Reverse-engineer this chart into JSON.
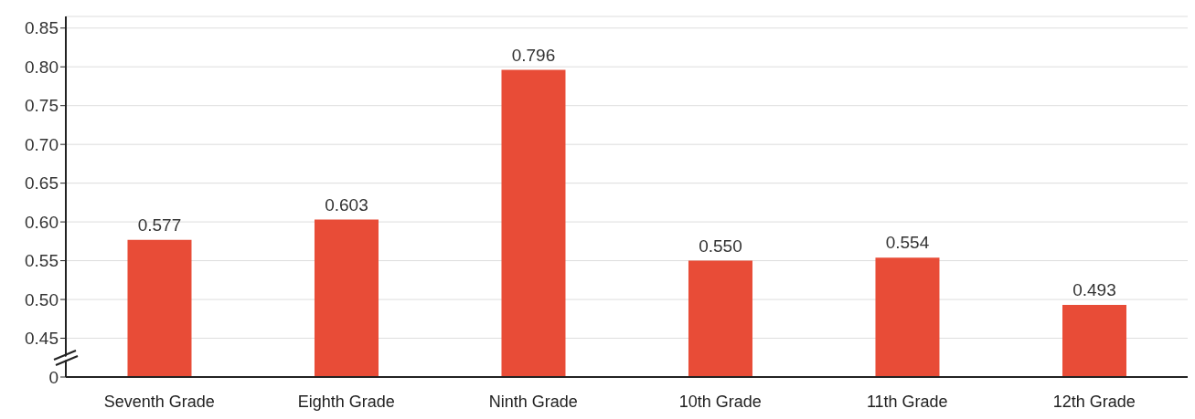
{
  "chart_data": {
    "type": "bar",
    "categories": [
      "Seventh Grade",
      "Eighth Grade",
      "Ninth Grade",
      "10th Grade",
      "11th Grade",
      "12th Grade"
    ],
    "values": [
      0.577,
      0.603,
      0.796,
      0.55,
      0.554,
      0.493
    ],
    "value_labels": [
      "0.577",
      "0.603",
      "0.796",
      "0.550",
      "0.554",
      "0.493"
    ],
    "color": "#e84c37",
    "ylim": [
      0.4,
      0.865
    ],
    "yticks": [
      {
        "value": 0.4,
        "label": "0"
      },
      0.45,
      {
        "value": 0.5,
        "label": "0.50"
      },
      0.55,
      {
        "value": 0.6,
        "label": "0.60"
      },
      0.65,
      {
        "value": 0.7,
        "label": "0.70"
      },
      0.75,
      {
        "value": 0.8,
        "label": "0.80"
      },
      0.85
    ],
    "grid": "y"
  }
}
